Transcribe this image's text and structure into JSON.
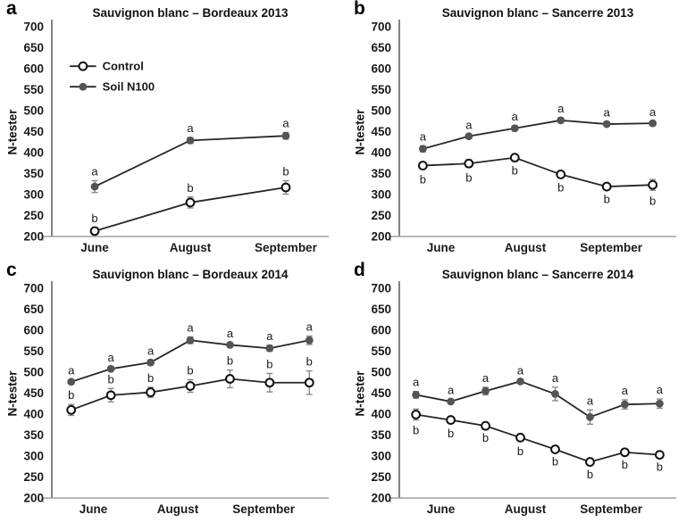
{
  "figure": {
    "background": "#ffffff"
  },
  "colors": {
    "text": "#1a1a1a",
    "line": "#262626",
    "open_marker_fill": "#ffffff",
    "open_marker_stroke": "#111111",
    "filled_marker": "#545454",
    "error_bar": "#8a8a8a",
    "y_axis": "#595959",
    "x_axis": "#a0a0a0"
  },
  "chart_data": [
    {
      "panel_letter": "a",
      "type": "line",
      "title": "Sauvignon blanc – Bordeaux 2013",
      "ylabel": "N-tester",
      "ylim": [
        200,
        700
      ],
      "ytick_step": 50,
      "x_categories": [
        "June",
        "August",
        "September"
      ],
      "legend": {
        "visible": true,
        "entries": [
          "Control",
          "Soil N100"
        ]
      },
      "series": [
        {
          "name": "Control",
          "marker": "open-circle",
          "letter_side": "above",
          "values": [
            213,
            281,
            317
          ],
          "errors": [
            8,
            13,
            16
          ],
          "sig_letters": [
            "b",
            "b",
            "b"
          ]
        },
        {
          "name": "Soil N100",
          "marker": "filled-circle",
          "letter_side": "above",
          "values": [
            319,
            429,
            440
          ],
          "errors": [
            14,
            7,
            8
          ],
          "sig_letters": [
            "a",
            "a",
            "a"
          ]
        }
      ]
    },
    {
      "panel_letter": "b",
      "type": "line",
      "title": "Sauvignon blanc – Sancerre 2013",
      "ylabel": "N-tester",
      "ylim": [
        200,
        700
      ],
      "ytick_step": 50,
      "x_categories": [
        "June",
        "August",
        "September"
      ],
      "legend": {
        "visible": false,
        "entries": []
      },
      "series": [
        {
          "name": "Control",
          "marker": "open-circle",
          "letter_side": "below",
          "values": [
            369,
            374,
            388,
            348,
            319,
            323
          ],
          "errors": [
            8,
            9,
            6,
            6,
            5,
            13
          ],
          "sig_letters": [
            "b",
            "b",
            "b",
            "b",
            "b",
            "b"
          ]
        },
        {
          "name": "Soil N100",
          "marker": "filled-circle",
          "letter_side": "above",
          "values": [
            409,
            439,
            458,
            477,
            468,
            470
          ],
          "errors": [
            7,
            5,
            6,
            6,
            5,
            5
          ],
          "sig_letters": [
            "a",
            "a",
            "a",
            "a",
            "a",
            "a"
          ]
        }
      ]
    },
    {
      "panel_letter": "c",
      "type": "line",
      "title": "Sauvignon blanc – Bordeaux 2014",
      "ylabel": "N-tester",
      "ylim": [
        200,
        700
      ],
      "ytick_step": 50,
      "x_categories": [
        "June",
        "August",
        "September"
      ],
      "legend": {
        "visible": false,
        "entries": []
      },
      "series": [
        {
          "name": "Control",
          "marker": "open-circle",
          "letter_side": "above",
          "values": [
            410,
            445,
            452,
            467,
            484,
            475,
            475
          ],
          "errors": [
            13,
            16,
            12,
            15,
            21,
            22,
            28
          ],
          "sig_letters": [
            "b",
            "b",
            "b",
            "b",
            "b",
            "b",
            "b"
          ]
        },
        {
          "name": "Soil N100",
          "marker": "filled-circle",
          "letter_side": "above",
          "values": [
            477,
            508,
            523,
            576,
            565,
            557,
            576
          ],
          "errors": [
            5,
            5,
            6,
            8,
            5,
            7,
            10
          ],
          "sig_letters": [
            "a",
            "a",
            "a",
            "a",
            "a",
            "a",
            "a"
          ]
        }
      ]
    },
    {
      "panel_letter": "d",
      "type": "line",
      "title": "Sauvignon blanc – Sancerre 2014",
      "ylabel": "N-tester",
      "ylim": [
        200,
        700
      ],
      "ytick_step": 50,
      "x_categories": [
        "June",
        "August",
        "September"
      ],
      "legend": {
        "visible": false,
        "entries": []
      },
      "series": [
        {
          "name": "Control",
          "marker": "open-circle",
          "letter_side": "below",
          "values": [
            399,
            386,
            372,
            344,
            316,
            286,
            309,
            303
          ],
          "errors": [
            13,
            7,
            4,
            8,
            4,
            5,
            5,
            4
          ],
          "sig_letters": [
            "b",
            "b",
            "b",
            "b",
            "b",
            "b",
            "b",
            "b"
          ]
        },
        {
          "name": "Soil N100",
          "marker": "filled-circle",
          "letter_side": "above",
          "values": [
            446,
            430,
            455,
            478,
            448,
            393,
            423,
            425
          ],
          "errors": [
            8,
            5,
            9,
            4,
            16,
            17,
            11,
            11
          ],
          "sig_letters": [
            "a",
            "a",
            "a",
            "a",
            "a",
            "a",
            "a",
            "a"
          ]
        }
      ]
    }
  ]
}
